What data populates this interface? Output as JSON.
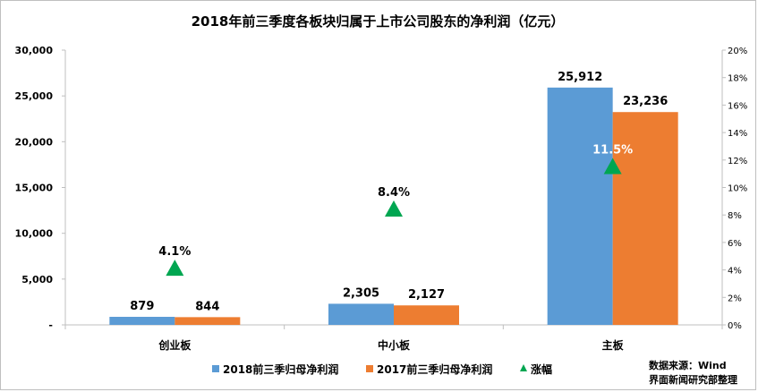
{
  "chart_data": {
    "type": "bar",
    "title": "2018年前三季度各板块归属于上市公司股东的净利润（亿元）",
    "categories": [
      "创业板",
      "中小板",
      "主板"
    ],
    "series": [
      {
        "name": "2018前三季归母净利润",
        "values": [
          879,
          2305,
          25912
        ],
        "labels": [
          "879",
          "2,305",
          "25,912"
        ],
        "color": "#5b9bd5"
      },
      {
        "name": "2017前三季归母净利润",
        "values": [
          844,
          2127,
          23236
        ],
        "labels": [
          "844",
          "2,127",
          "23,236"
        ],
        "color": "#ed7d31"
      }
    ],
    "growth": {
      "name": "涨幅",
      "values": [
        4.1,
        8.4,
        11.5
      ],
      "labels": [
        "4.1%",
        "8.4%",
        "11.5%"
      ],
      "label_colors": [
        "#000000",
        "#000000",
        "#ffffff"
      ],
      "color": "#00a651",
      "axis": "right"
    },
    "ylim": [
      0,
      30000
    ],
    "y_ticks": [
      "-",
      "5,000",
      "10,000",
      "15,000",
      "20,000",
      "25,000",
      "30,000"
    ],
    "y2lim": [
      0,
      20
    ],
    "y2_ticks": [
      "0%",
      "2%",
      "4%",
      "6%",
      "8%",
      "10%",
      "12%",
      "14%",
      "16%",
      "18%",
      "20%"
    ],
    "legend_position": "bottom",
    "grid": false
  },
  "source": {
    "line1": "数据来源：Wind",
    "line2": "界面新闻研究部整理"
  }
}
